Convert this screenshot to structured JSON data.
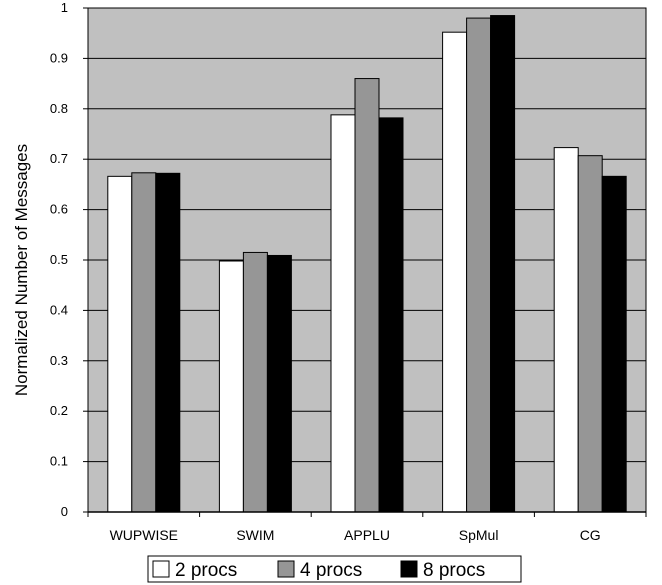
{
  "chart_data": {
    "type": "bar",
    "categories": [
      "WUPWISE",
      "SWIM",
      "APPLU",
      "SpMul",
      "CG"
    ],
    "series": [
      {
        "name": "2 procs",
        "values": [
          0.666,
          0.498,
          0.788,
          0.952,
          0.723
        ],
        "color": "#ffffff"
      },
      {
        "name": "4 procs",
        "values": [
          0.673,
          0.515,
          0.86,
          0.98,
          0.707
        ],
        "color": "#969696"
      },
      {
        "name": "8 procs",
        "values": [
          0.672,
          0.509,
          0.782,
          0.985,
          0.666
        ],
        "color": "#000000"
      }
    ],
    "ylabel": "Normalized Number of Messages",
    "xlabel": "",
    "ylim": [
      0,
      1
    ],
    "yticks": [
      "0",
      "0.1",
      "0.2",
      "0.3",
      "0.4",
      "0.5",
      "0.6",
      "0.7",
      "0.8",
      "0.9",
      "1"
    ],
    "grid": true,
    "legend": "bottom",
    "plot_background": "#c0c0c0"
  }
}
